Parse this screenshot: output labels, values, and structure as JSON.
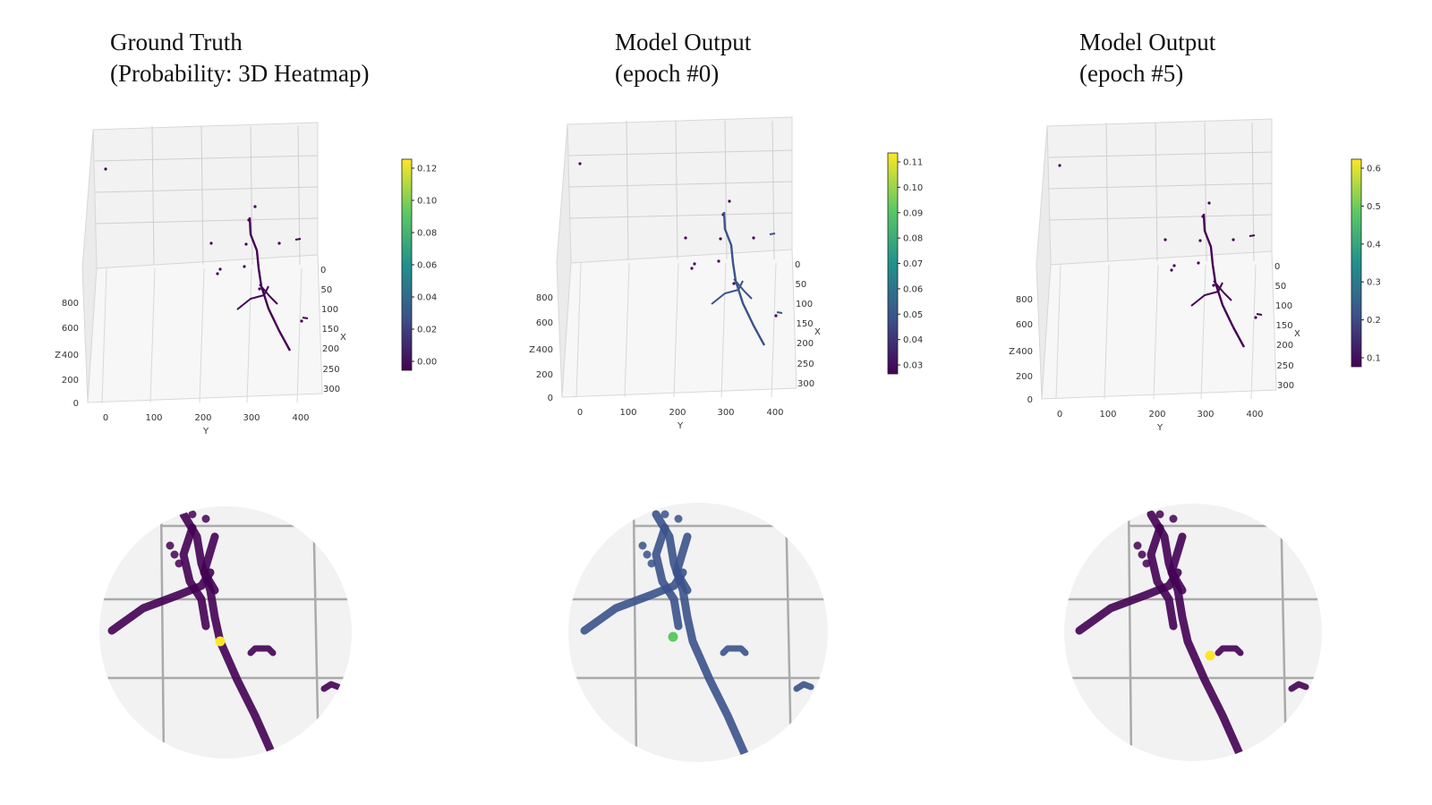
{
  "panels": [
    {
      "title_line1": "Ground Truth",
      "title_line2": "(Probability: 3D Heatmap)",
      "colorbar_ticks": [
        "0.12",
        "0.10",
        "0.08",
        "0.06",
        "0.04",
        "0.02",
        "0.00"
      ]
    },
    {
      "title_line1": "Model Output",
      "title_line2": "(epoch #0)",
      "colorbar_ticks": [
        "0.11",
        "0.10",
        "0.09",
        "0.08",
        "0.07",
        "0.06",
        "0.05",
        "0.04",
        "0.03"
      ]
    },
    {
      "title_line1": "Model Output",
      "title_line2": "(epoch #5)",
      "colorbar_ticks": [
        "0.6",
        "0.5",
        "0.4",
        "0.3",
        "0.2",
        "0.1"
      ]
    }
  ],
  "axes": {
    "x_label": "X",
    "y_label": "Y",
    "z_label": "Z",
    "x_ticks": [
      "0",
      "50",
      "100",
      "150",
      "200",
      "250",
      "300"
    ],
    "y_ticks": [
      "0",
      "100",
      "200",
      "300",
      "400"
    ],
    "z_ticks": [
      "0",
      "200",
      "400",
      "600",
      "800"
    ]
  },
  "chart_data": [
    {
      "type": "scatter",
      "title": "Ground Truth (Probability: 3D Heatmap)",
      "xlabel": "X",
      "ylabel": "Y",
      "zlabel": "Z",
      "xlim": [
        0,
        300
      ],
      "ylim": [
        0,
        400
      ],
      "zlim": [
        0,
        800
      ],
      "colorbar": {
        "min": 0.0,
        "max": 0.12,
        "colormap": "viridis"
      }
    },
    {
      "type": "scatter",
      "title": "Model Output (epoch #0)",
      "xlabel": "X",
      "ylabel": "Y",
      "zlabel": "Z",
      "xlim": [
        0,
        300
      ],
      "ylim": [
        0,
        400
      ],
      "zlim": [
        0,
        800
      ],
      "colorbar": {
        "min": 0.03,
        "max": 0.11,
        "colormap": "viridis"
      }
    },
    {
      "type": "scatter",
      "title": "Model Output (epoch #5)",
      "xlabel": "X",
      "ylabel": "Y",
      "zlabel": "Z",
      "xlim": [
        0,
        300
      ],
      "ylim": [
        0,
        400
      ],
      "zlim": [
        0,
        800
      ],
      "colorbar": {
        "min": 0.0,
        "max": 0.65,
        "colormap": "viridis"
      }
    }
  ],
  "colors": {
    "track_low": "#440154",
    "track_mid": "#3b528b",
    "hot": "#fde725",
    "pane": "#f2f2f2"
  }
}
